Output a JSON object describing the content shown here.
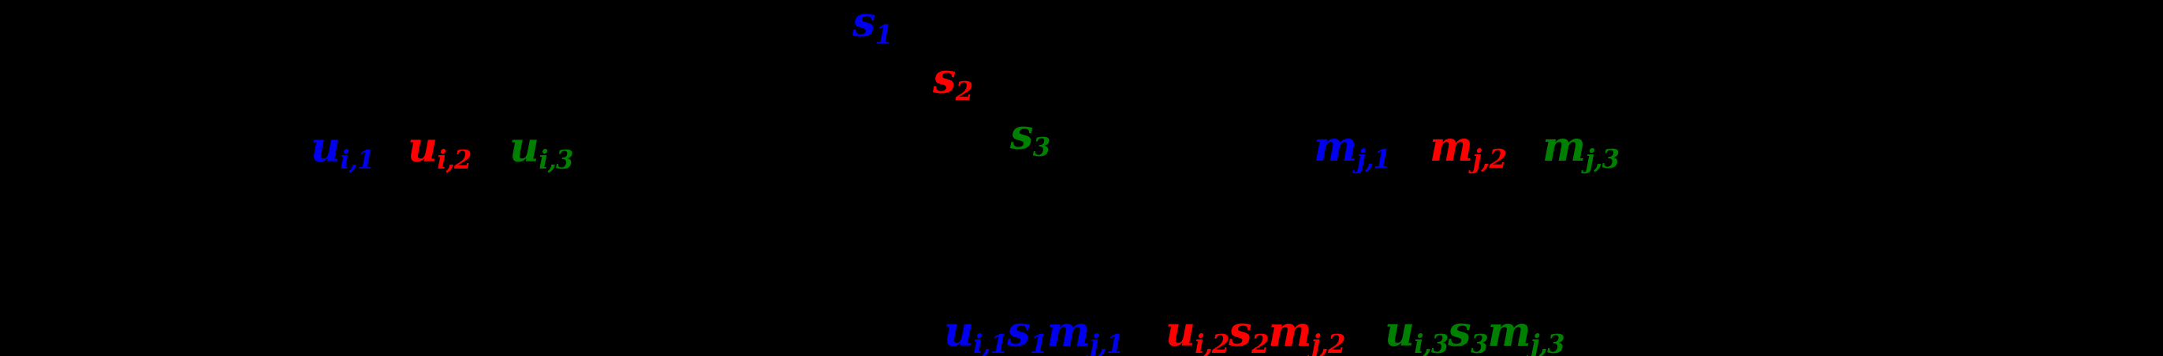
{
  "colors": {
    "component_1": "#0000ee",
    "component_2": "#ff0000",
    "component_3": "#008000",
    "background": "#000000"
  },
  "singular_values": [
    {
      "base": "s",
      "sub": "1",
      "color": "#0000ee"
    },
    {
      "base": "s",
      "sub": "2",
      "color": "#ff0000"
    },
    {
      "base": "s",
      "sub": "3",
      "color": "#008000"
    }
  ],
  "user_factors": [
    {
      "base": "u",
      "sub": "i,1",
      "color": "#0000ee"
    },
    {
      "base": "u",
      "sub": "i,2",
      "color": "#ff0000"
    },
    {
      "base": "u",
      "sub": "i,3",
      "color": "#008000"
    }
  ],
  "item_factors": [
    {
      "base": "m",
      "sub": "j,1",
      "color": "#0000ee"
    },
    {
      "base": "m",
      "sub": "j,2",
      "color": "#ff0000"
    },
    {
      "base": "m",
      "sub": "j,3",
      "color": "#008000"
    }
  ],
  "products": [
    {
      "color": "#0000ee",
      "terms": [
        {
          "base": "u",
          "sub": "i,1"
        },
        {
          "base": "s",
          "sub": "1"
        },
        {
          "base": "m",
          "sub": "j,1"
        }
      ]
    },
    {
      "color": "#ff0000",
      "terms": [
        {
          "base": "u",
          "sub": "i,2"
        },
        {
          "base": "s",
          "sub": "2"
        },
        {
          "base": "m",
          "sub": "j,2"
        }
      ]
    },
    {
      "color": "#008000",
      "terms": [
        {
          "base": "u",
          "sub": "i,3"
        },
        {
          "base": "s",
          "sub": "3"
        },
        {
          "base": "m",
          "sub": "j,3"
        }
      ]
    }
  ]
}
